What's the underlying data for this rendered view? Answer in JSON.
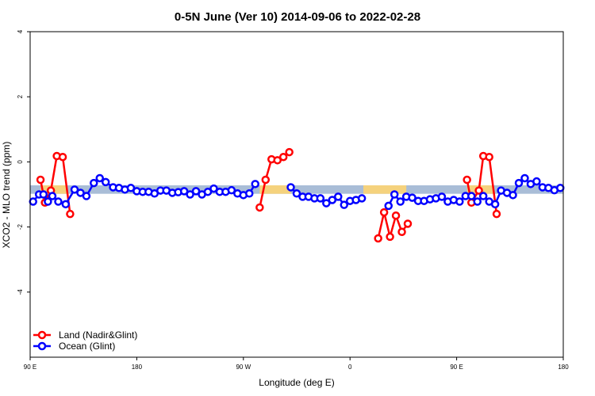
{
  "chart_data": {
    "type": "line",
    "title": "0-5N June (Ver 10)   2014-09-06 to 2022-02-28",
    "xlabel": "Longitude (deg E)",
    "ylabel": "XCO2 - MLO trend (ppm)",
    "xlim": [
      0,
      360
    ],
    "ylim": [
      -6,
      4
    ],
    "x_ticks": [
      {
        "pos": 0,
        "label": "90 E"
      },
      {
        "pos": 72,
        "label": "180"
      },
      {
        "pos": 144,
        "label": "90 W"
      },
      {
        "pos": 216,
        "label": "0"
      },
      {
        "pos": 288,
        "label": "90 E"
      },
      {
        "pos": 360,
        "label": "180"
      }
    ],
    "y_ticks": [
      {
        "value": 4,
        "label": "4"
      },
      {
        "value": 2,
        "label": "2"
      },
      {
        "value": 0,
        "label": "0"
      },
      {
        "value": -2,
        "label": "-2"
      },
      {
        "value": -4,
        "label": "-4"
      }
    ],
    "background_bands": [
      {
        "y0": -0.98,
        "y1": -0.72,
        "color": "#a9bdd7"
      },
      {
        "x0": 7,
        "x1": 25,
        "y0": -0.98,
        "y1": -0.72,
        "color": "#f5d27d"
      },
      {
        "x0": 155,
        "x1": 176,
        "y0": -0.98,
        "y1": -0.72,
        "color": "#f5d27d"
      },
      {
        "x0": 225,
        "x1": 254,
        "y0": -0.98,
        "y1": -0.72,
        "color": "#f5d27d"
      },
      {
        "x0": 295,
        "x1": 313,
        "y0": -0.98,
        "y1": -0.72,
        "color": "#f5d27d"
      }
    ],
    "series": [
      {
        "name": "Land (Nadir&Glint)",
        "color": "#ff0000",
        "segments": [
          [
            [
              7,
              -0.55
            ],
            [
              10,
              -1.25
            ],
            [
              14,
              -0.88
            ],
            [
              18,
              0.18
            ],
            [
              22,
              0.15
            ],
            [
              27,
              -1.6
            ]
          ],
          [
            [
              155,
              -1.4
            ],
            [
              159,
              -0.55
            ],
            [
              163,
              0.08
            ],
            [
              167,
              0.05
            ],
            [
              171,
              0.15
            ],
            [
              175,
              0.3
            ]
          ],
          [
            [
              235,
              -2.35
            ],
            [
              239,
              -1.55
            ],
            [
              243,
              -2.3
            ],
            [
              247,
              -1.65
            ],
            [
              251,
              -2.15
            ],
            [
              255,
              -1.9
            ]
          ],
          [
            [
              295,
              -0.55
            ],
            [
              298,
              -1.25
            ],
            [
              303,
              -0.88
            ],
            [
              306,
              0.18
            ],
            [
              310,
              0.15
            ],
            [
              315,
              -1.6
            ]
          ]
        ]
      },
      {
        "name": "Ocean (Glint)",
        "color": "#0000ff",
        "segments": [
          [
            [
              2,
              -1.22
            ],
            [
              6,
              -1.0
            ],
            [
              9,
              -1.0
            ],
            [
              12,
              -1.22
            ],
            [
              15,
              -1.05
            ],
            [
              19,
              -1.22
            ],
            [
              24,
              -1.3
            ],
            [
              30,
              -0.85
            ],
            [
              34,
              -0.95
            ],
            [
              38,
              -1.05
            ],
            [
              43,
              -0.65
            ],
            [
              47,
              -0.5
            ],
            [
              51,
              -0.62
            ],
            [
              56,
              -0.78
            ],
            [
              60,
              -0.8
            ],
            [
              64,
              -0.85
            ],
            [
              68,
              -0.8
            ],
            [
              72,
              -0.9
            ],
            [
              76,
              -0.92
            ],
            [
              80,
              -0.92
            ],
            [
              84,
              -0.97
            ],
            [
              88,
              -0.88
            ],
            [
              92,
              -0.88
            ],
            [
              96,
              -0.95
            ],
            [
              100,
              -0.93
            ],
            [
              104,
              -0.9
            ],
            [
              108,
              -1.0
            ],
            [
              112,
              -0.9
            ],
            [
              116,
              -1.0
            ],
            [
              120,
              -0.92
            ],
            [
              124,
              -0.82
            ],
            [
              128,
              -0.92
            ],
            [
              132,
              -0.92
            ],
            [
              136,
              -0.87
            ],
            [
              140,
              -0.97
            ],
            [
              144,
              -1.02
            ],
            [
              148,
              -0.97
            ],
            [
              152,
              -0.68
            ]
          ],
          [
            [
              176,
              -0.78
            ],
            [
              180,
              -0.97
            ],
            [
              184,
              -1.07
            ],
            [
              188,
              -1.07
            ],
            [
              192,
              -1.12
            ],
            [
              196,
              -1.12
            ],
            [
              200,
              -1.27
            ],
            [
              204,
              -1.17
            ],
            [
              208,
              -1.07
            ],
            [
              212,
              -1.32
            ],
            [
              216,
              -1.2
            ],
            [
              220,
              -1.17
            ],
            [
              224,
              -1.12
            ]
          ],
          [
            [
              242,
              -1.35
            ],
            [
              246,
              -1.0
            ],
            [
              250,
              -1.22
            ],
            [
              254,
              -1.07
            ],
            [
              258,
              -1.1
            ],
            [
              262,
              -1.2
            ],
            [
              266,
              -1.2
            ],
            [
              270,
              -1.15
            ],
            [
              274,
              -1.12
            ],
            [
              278,
              -1.07
            ],
            [
              282,
              -1.22
            ],
            [
              286,
              -1.17
            ],
            [
              290,
              -1.22
            ],
            [
              294,
              -1.05
            ],
            [
              298,
              -1.05
            ],
            [
              302,
              -1.22
            ],
            [
              306,
              -1.05
            ],
            [
              310,
              -1.22
            ],
            [
              314,
              -1.3
            ],
            [
              318,
              -0.88
            ],
            [
              322,
              -0.95
            ],
            [
              326,
              -1.02
            ],
            [
              330,
              -0.65
            ],
            [
              334,
              -0.5
            ],
            [
              338,
              -0.68
            ],
            [
              342,
              -0.6
            ],
            [
              346,
              -0.78
            ],
            [
              350,
              -0.8
            ],
            [
              354,
              -0.87
            ],
            [
              358,
              -0.8
            ]
          ]
        ]
      }
    ],
    "legend": {
      "position": "bottom-left"
    }
  }
}
